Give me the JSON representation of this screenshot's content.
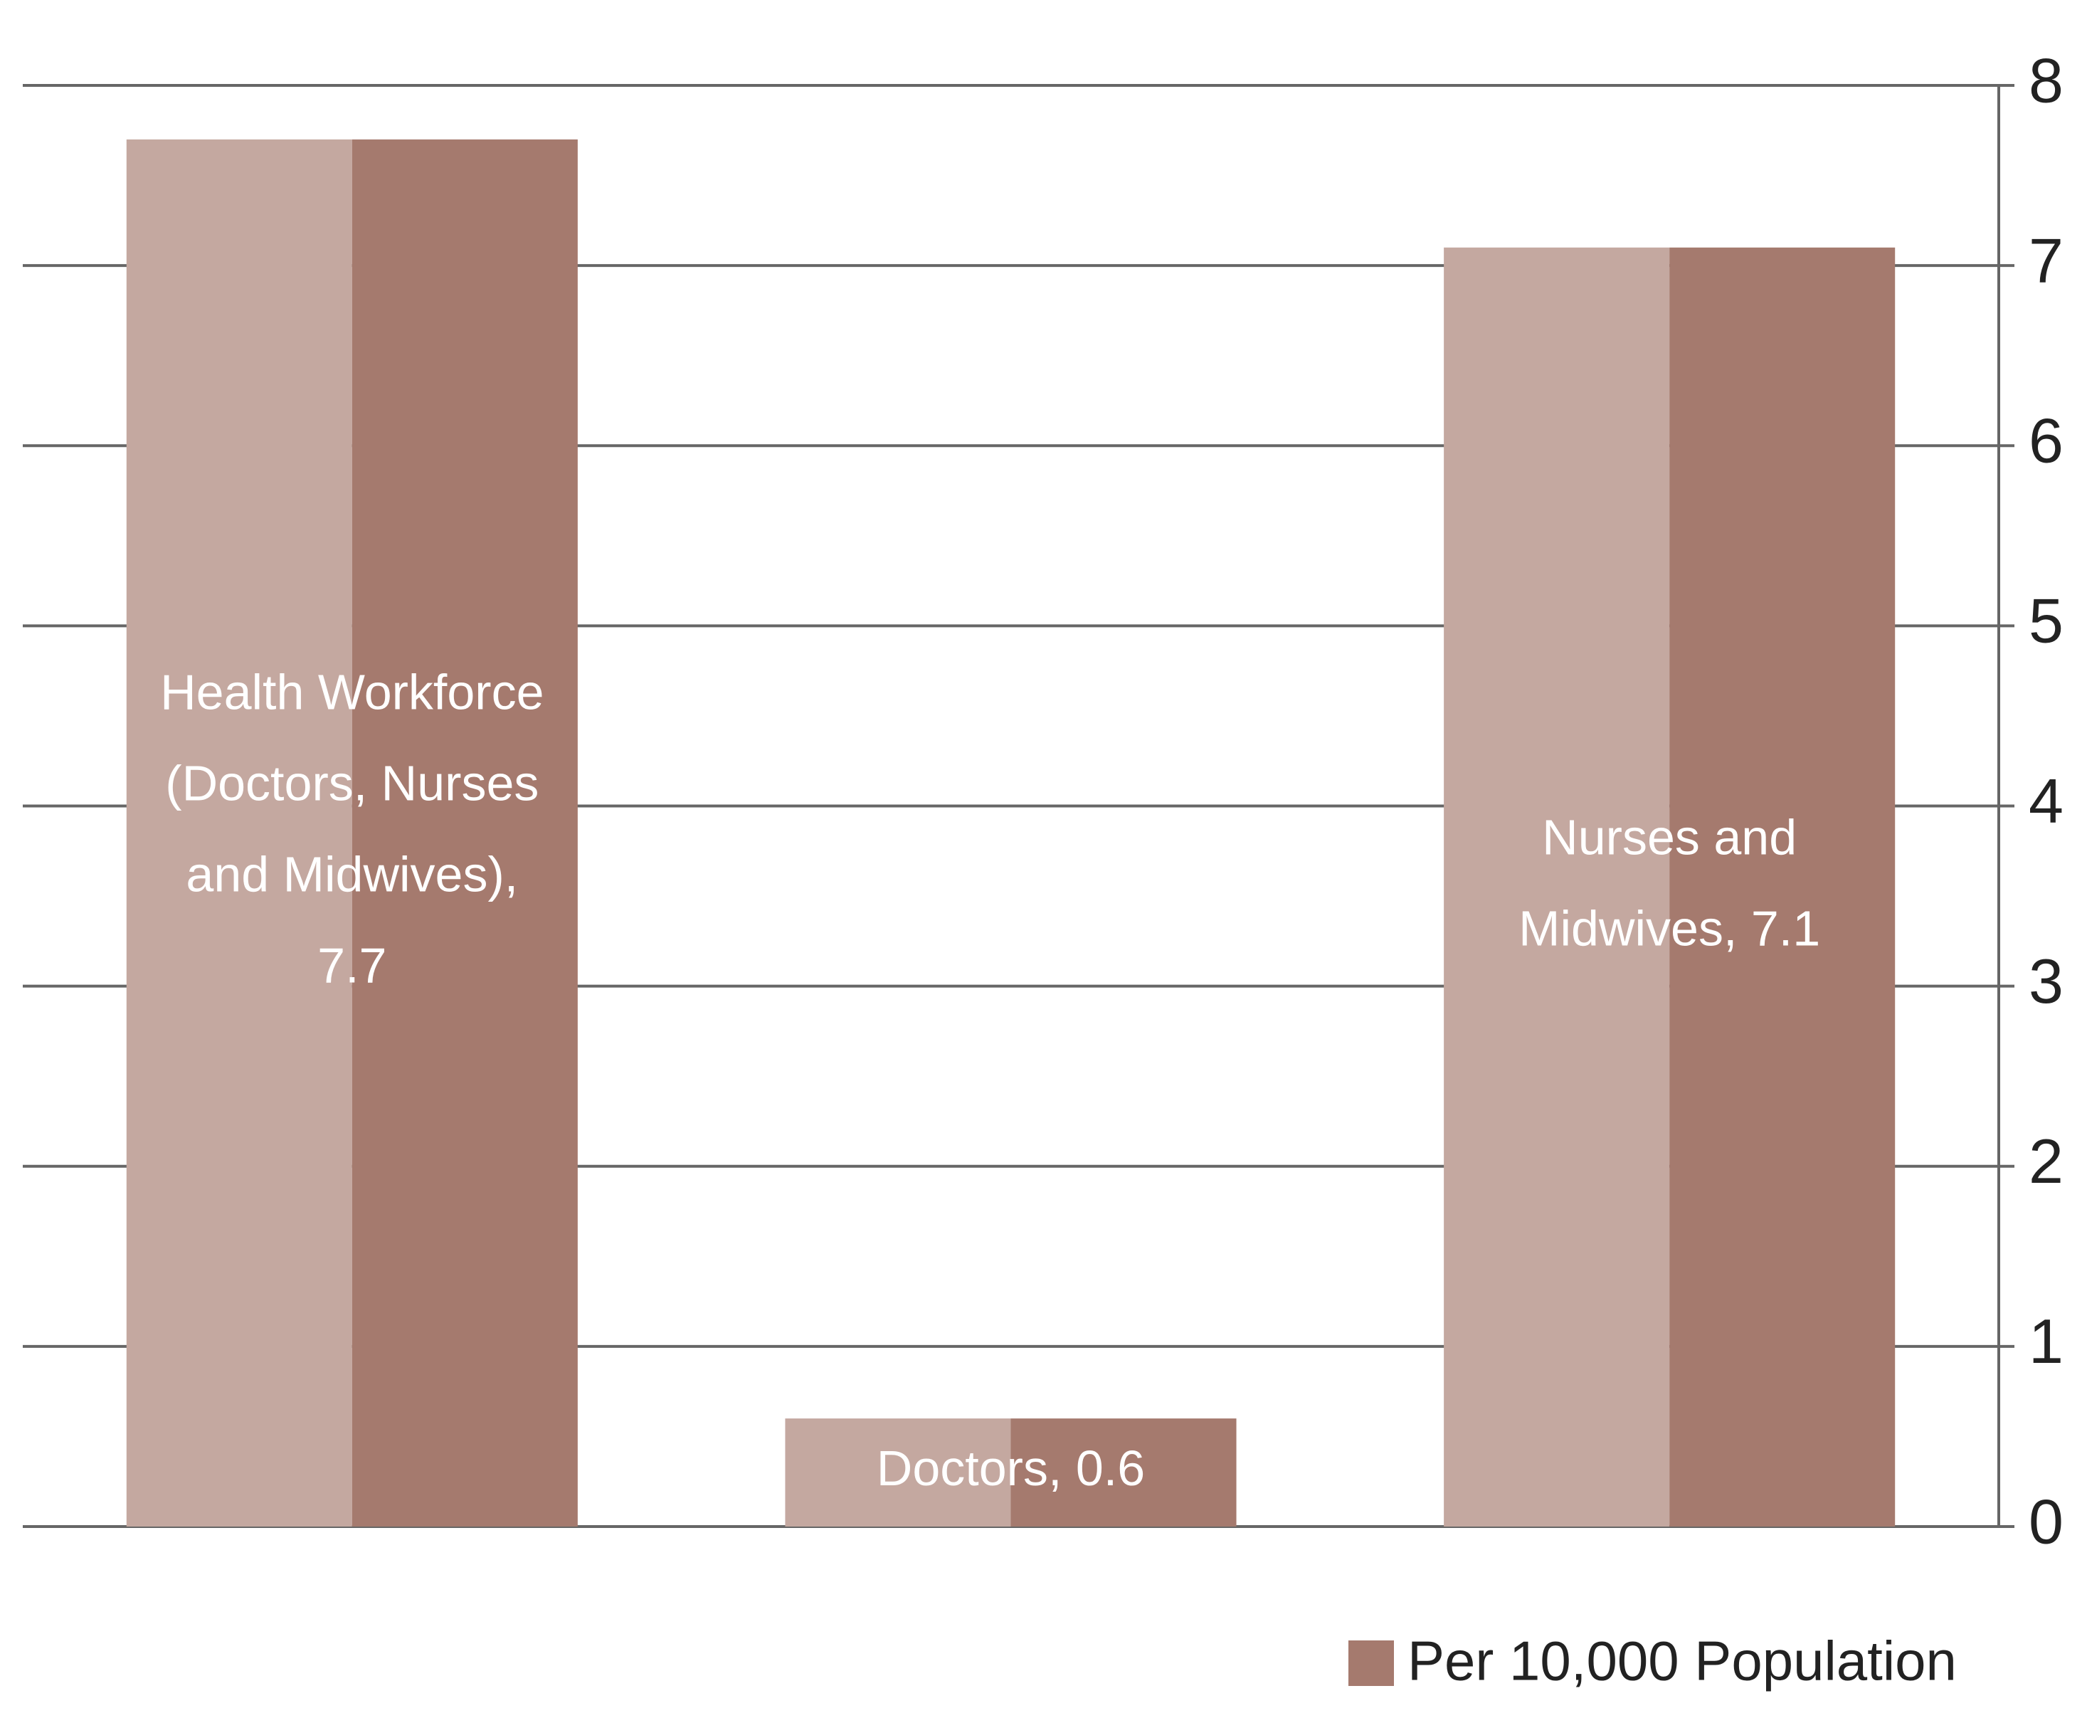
{
  "chart_data": {
    "type": "bar",
    "series": [
      {
        "name": "Per 10,000 Population",
        "color": "#a57a6e",
        "shade_color": "#c4a8a0",
        "values": [
          7.7,
          0.6,
          7.1
        ],
        "value_labels": [
          "Health Workforce (Doctors, Nurses and Midwives), 7.7",
          "Doctors, 0.6",
          "Nurses and Midwives, 7.1"
        ]
      }
    ],
    "ylim": [
      0,
      8
    ],
    "yticks": [
      0,
      1,
      2,
      3,
      4,
      5,
      6,
      7,
      8
    ],
    "grid": true,
    "y_axis_side": "right",
    "legend": "bottom-right"
  }
}
